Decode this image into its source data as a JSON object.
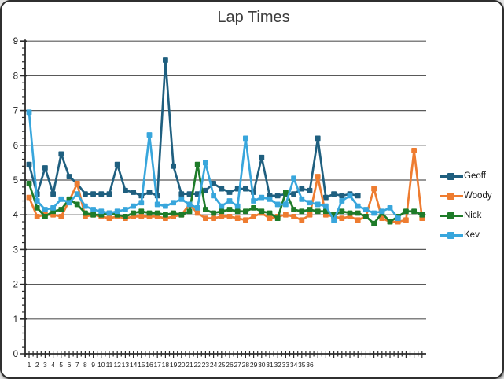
{
  "frame": {
    "background": "#ffffff",
    "border_color": "#2f2f2f",
    "page_background": "#e4e4e4"
  },
  "chart_data": {
    "type": "line",
    "title": "Lap Times",
    "xlabel": "",
    "ylabel": "",
    "ylim": [
      0,
      9
    ],
    "grid": "horizontal",
    "gridline_color": "#595959",
    "axis_color": "#2b2b2b",
    "label_color": "#1c1c1c",
    "legend_position": "right",
    "categories_total": 50,
    "y_axis_labels": [
      "0",
      "1",
      "2",
      "3",
      "4",
      "5",
      "6",
      "7",
      "8",
      "9"
    ],
    "x_axis_labels": [
      "1",
      "2",
      "3",
      "4",
      "5",
      "6",
      "7",
      "8",
      "9",
      "10",
      "11",
      "12",
      "13",
      "14",
      "15",
      "16",
      "17",
      "18",
      "19",
      "20",
      "21",
      "22",
      "23",
      "24",
      "25",
      "26",
      "27",
      "28",
      "29",
      "30",
      "31",
      "32",
      "33",
      "34",
      "35",
      "36"
    ],
    "series": [
      {
        "name": "Geoff",
        "color": "#1F5F7F",
        "values": [
          5.45,
          4.6,
          5.35,
          4.6,
          5.75,
          5.1,
          4.9,
          4.6,
          4.6,
          4.6,
          4.6,
          5.45,
          4.7,
          4.65,
          4.55,
          4.65,
          4.55,
          8.45,
          5.4,
          4.6,
          4.6,
          4.6,
          4.7,
          4.9,
          4.75,
          4.65,
          4.75,
          4.75,
          4.65,
          5.65,
          4.55,
          4.55,
          4.6,
          4.6,
          4.75,
          4.7,
          6.2,
          4.5,
          4.6,
          4.55,
          4.6,
          4.55
        ]
      },
      {
        "name": "Woody",
        "color": "#EE7C30",
        "values": [
          4.5,
          3.95,
          4.0,
          4.0,
          3.95,
          4.4,
          4.9,
          3.95,
          4.0,
          3.95,
          3.9,
          3.95,
          3.9,
          3.95,
          3.95,
          3.95,
          3.95,
          3.9,
          3.95,
          4.0,
          4.3,
          4.05,
          3.9,
          3.9,
          3.95,
          3.95,
          3.9,
          3.85,
          3.95,
          4.05,
          3.9,
          3.95,
          4.0,
          3.95,
          3.85,
          4.0,
          5.1,
          4.0,
          3.95,
          3.9,
          3.95,
          3.85,
          3.95,
          4.75,
          3.9,
          3.8,
          3.8,
          3.85,
          5.85,
          3.9
        ]
      },
      {
        "name": "Nick",
        "color": "#1E7B29",
        "values": [
          4.9,
          4.2,
          3.95,
          4.1,
          4.15,
          4.45,
          4.3,
          4.05,
          4.0,
          4.0,
          4.05,
          4.0,
          3.95,
          4.05,
          4.1,
          4.05,
          4.05,
          4.0,
          4.05,
          4.0,
          4.1,
          5.45,
          4.15,
          4.05,
          4.1,
          4.15,
          4.1,
          4.1,
          4.2,
          4.1,
          4.05,
          3.9,
          4.65,
          4.15,
          4.1,
          4.15,
          4.1,
          4.1,
          4.0,
          4.1,
          4.05,
          4.05,
          3.95,
          3.75,
          4.05,
          3.8,
          3.95,
          4.1,
          4.1,
          4.0
        ]
      },
      {
        "name": "Kev",
        "color": "#38A6DC",
        "values": [
          6.95,
          4.4,
          4.15,
          4.2,
          4.45,
          4.35,
          4.6,
          4.25,
          4.15,
          4.1,
          4.05,
          4.1,
          4.15,
          4.25,
          4.35,
          6.3,
          4.3,
          4.25,
          4.35,
          4.45,
          4.3,
          4.2,
          5.5,
          4.55,
          4.25,
          4.4,
          4.25,
          6.2,
          4.4,
          4.5,
          4.45,
          4.3,
          4.3,
          5.05,
          4.45,
          4.35,
          4.3,
          4.25,
          3.85,
          4.4,
          4.55,
          4.25,
          4.15,
          4.05,
          4.1,
          4.2,
          3.9
        ]
      }
    ]
  }
}
